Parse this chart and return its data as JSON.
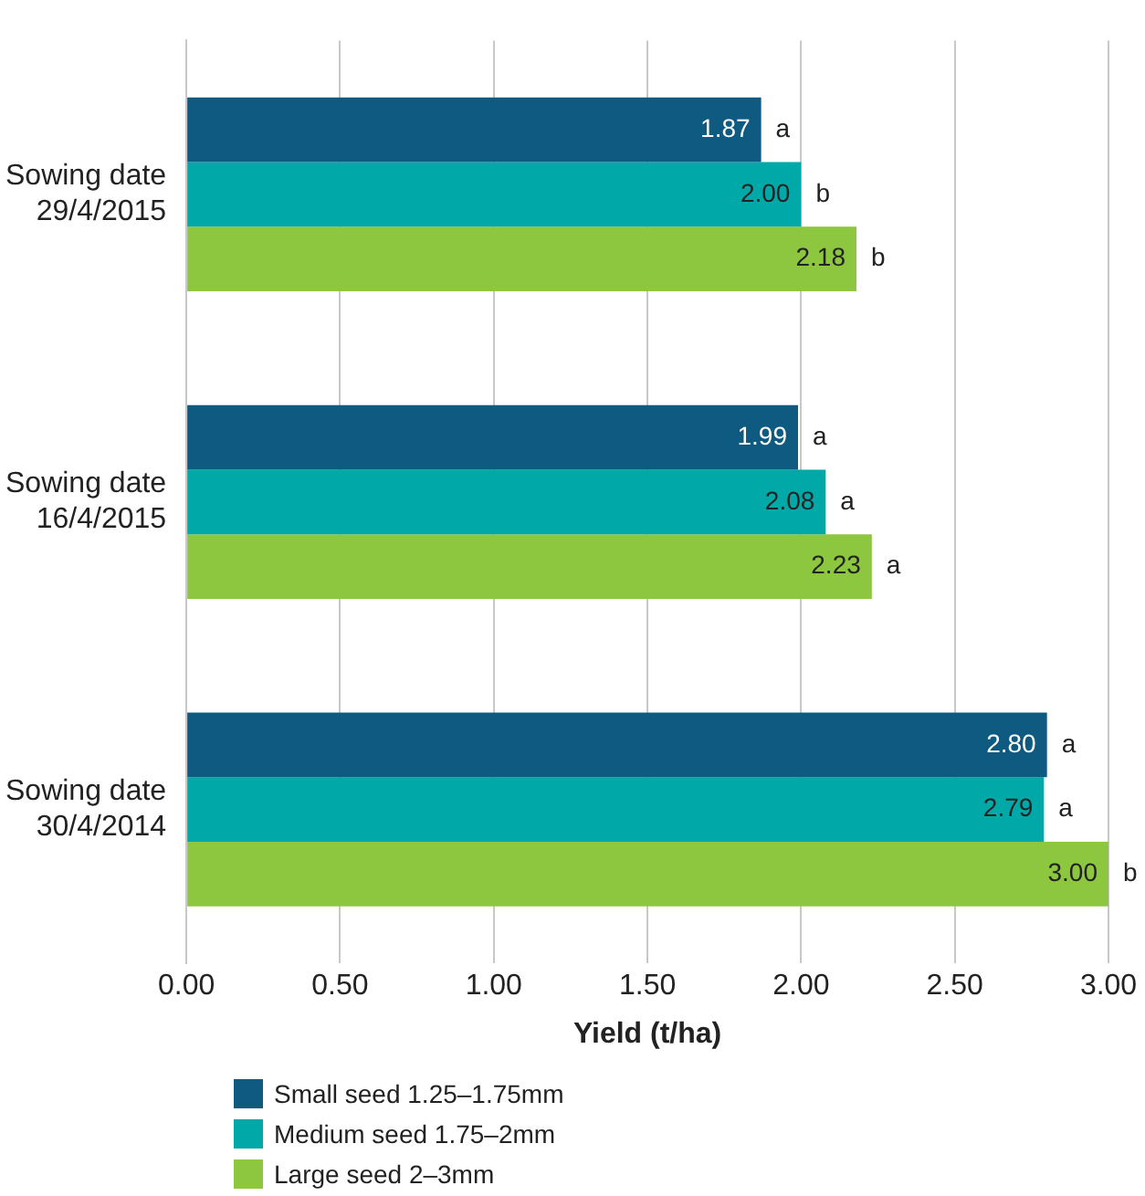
{
  "chart_data": {
    "type": "bar",
    "orientation": "horizontal",
    "xlabel": "Yield (t/ha)",
    "categories": [
      "Sowing date 29/4/2015",
      "Sowing date 16/4/2015",
      "Sowing date 30/4/2014"
    ],
    "series": [
      {
        "name": "Small seed 1.25–1.75mm",
        "color": "#0e5a80",
        "values": [
          1.87,
          1.99,
          2.8
        ],
        "value_labels": [
          "1.87",
          "1.99",
          "2.80"
        ]
      },
      {
        "name": "Medium seed 1.75–2mm",
        "color": "#00a8a8",
        "values": [
          2.0,
          2.08,
          2.79
        ],
        "value_labels": [
          "2.00",
          "2.08",
          "2.79"
        ]
      },
      {
        "name": "Large seed 2–3mm",
        "color": "#8dc63f",
        "values": [
          2.18,
          2.23,
          3.0
        ],
        "value_labels": [
          "2.18",
          "2.23",
          "3.00"
        ]
      }
    ],
    "xlim": [
      0,
      3
    ],
    "xticks": [
      {
        "value": 0,
        "label": "0.00"
      },
      {
        "value": 0.5,
        "label": "0.50"
      },
      {
        "value": 1,
        "label": "1.00"
      },
      {
        "value": 1.5,
        "label": "1.50"
      },
      {
        "value": 2,
        "label": "2.00"
      },
      {
        "value": 2.5,
        "label": "2.50"
      },
      {
        "value": 3,
        "label": "3.00"
      }
    ],
    "grid": "x",
    "legend": "bottom left",
    "annotations": [
      "a",
      "b",
      "b",
      "a",
      "a",
      "a",
      "a",
      "a",
      "b"
    ]
  }
}
